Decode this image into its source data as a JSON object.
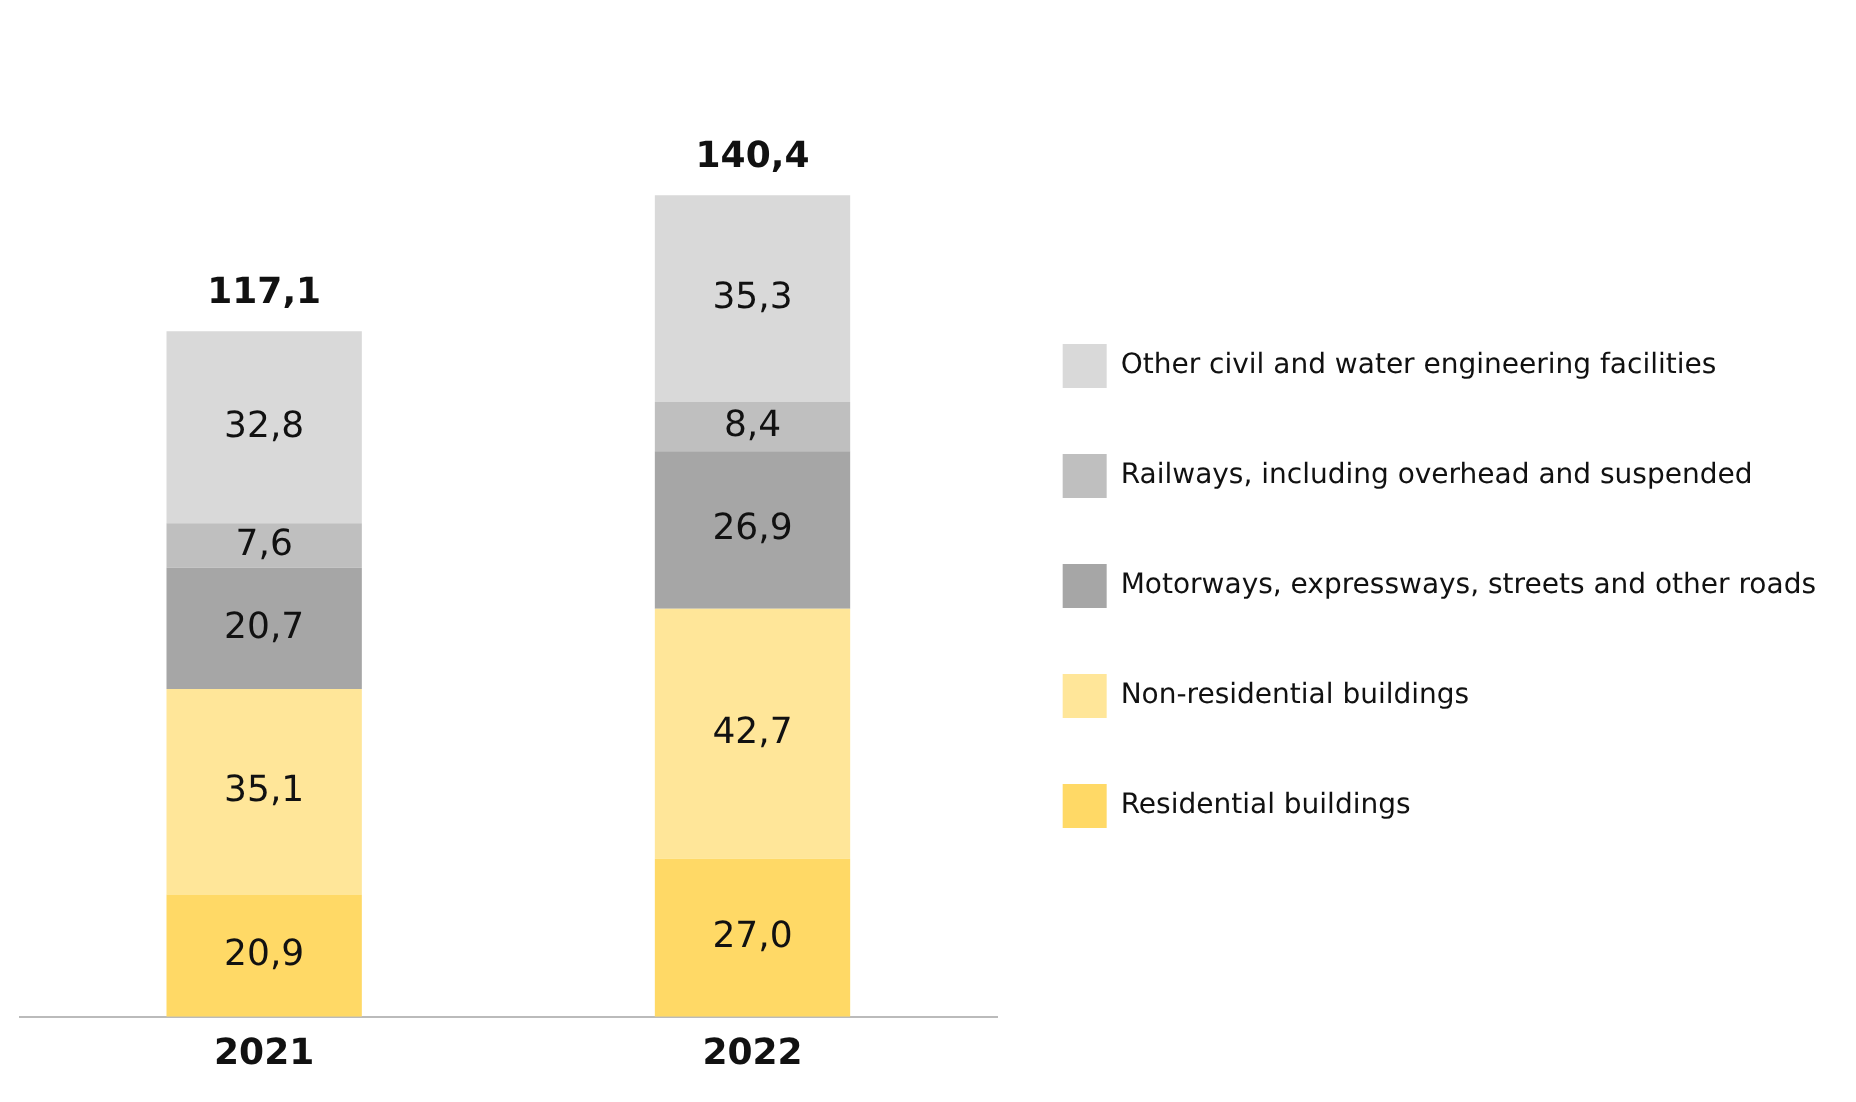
{
  "chart_data": {
    "type": "bar",
    "stacked": true,
    "categories": [
      "2021",
      "2022"
    ],
    "series": [
      {
        "name": "Residential buildings",
        "color": "#ffd966",
        "values": [
          20.9,
          27.0
        ],
        "value_labels": [
          "20,9",
          "27,0"
        ]
      },
      {
        "name": "Non-residential buildings",
        "color": "#ffe699",
        "values": [
          35.1,
          42.7
        ],
        "value_labels": [
          "35,1",
          "42,7"
        ]
      },
      {
        "name": "Motorways, expressways, streets and other roads",
        "color": "#a6a6a6",
        "values": [
          20.7,
          26.9
        ],
        "value_labels": [
          "20,7",
          "26,9"
        ]
      },
      {
        "name": "Railways, including overhead and suspended",
        "color": "#bfbfbf",
        "values": [
          7.6,
          8.4
        ],
        "value_labels": [
          "7,6",
          "8,4"
        ]
      },
      {
        "name": "Other civil and water engineering facilities",
        "color": "#d9d9d9",
        "values": [
          32.8,
          35.3
        ],
        "value_labels": [
          "32,8",
          "35,3"
        ]
      }
    ],
    "totals": [
      "117,1",
      "140,4"
    ],
    "grid": false,
    "legend": "right",
    "tick_labels": "x"
  }
}
